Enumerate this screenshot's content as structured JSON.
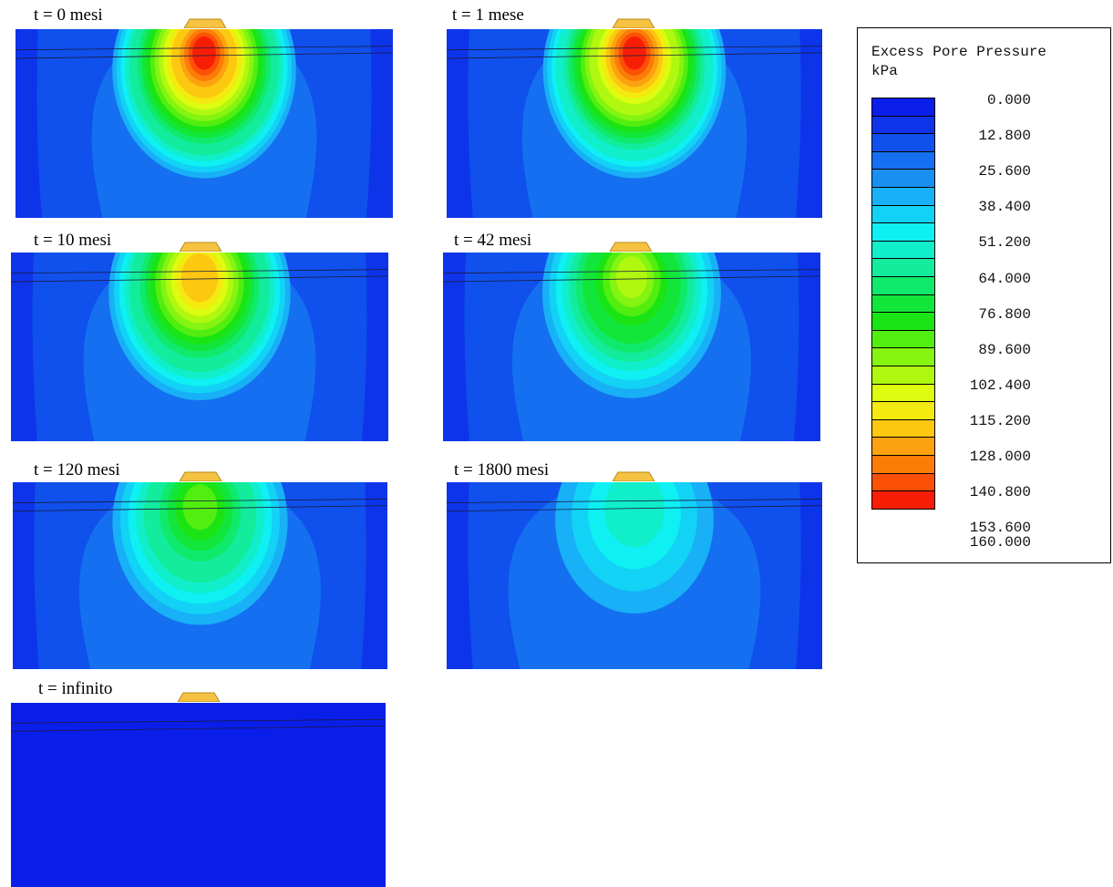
{
  "panels": [
    {
      "id": "t0",
      "title": "t = 0 mesi",
      "intensity": 1.0
    },
    {
      "id": "t1",
      "title": "t = 1 mese",
      "intensity": 0.98
    },
    {
      "id": "t10",
      "title": "t = 10 mesi",
      "intensity": 0.8
    },
    {
      "id": "t42",
      "title": "t = 42 mesi",
      "intensity": 0.62
    },
    {
      "id": "t120",
      "title": "t = 120 mesi",
      "intensity": 0.5
    },
    {
      "id": "t1800",
      "title": "t = 1800 mesi",
      "intensity": 0.22
    },
    {
      "id": "tinf",
      "title": "t = infinito",
      "intensity": 0.0
    }
  ],
  "legend": {
    "title": "Excess Pore Pressure",
    "unit": "kPa",
    "labels": [
      "0.000",
      "12.800",
      "25.600",
      "38.400",
      "51.200",
      "64.000",
      "76.800",
      "89.600",
      "102.400",
      "115.200",
      "128.000",
      "140.800",
      "153.600",
      "160.000"
    ],
    "colors": [
      "#0a1eea",
      "#0e34ea",
      "#1050ec",
      "#1470f0",
      "#1890f2",
      "#18b0f6",
      "#12d2f6",
      "#0ef0f2",
      "#10eeca",
      "#12ec9c",
      "#10ea6c",
      "#12e63a",
      "#1ae414",
      "#52ee10",
      "#84f410",
      "#b0f810",
      "#dcfc10",
      "#f4ea10",
      "#fcc810",
      "#fca210",
      "#fc7c08",
      "#fc5006",
      "#f81e06"
    ]
  },
  "colors": {
    "embankment_fill": "#f5c242",
    "embankment_stroke": "#b88a18",
    "background_field": "#1a3ceb",
    "field_infinite": "#0a1eea"
  }
}
